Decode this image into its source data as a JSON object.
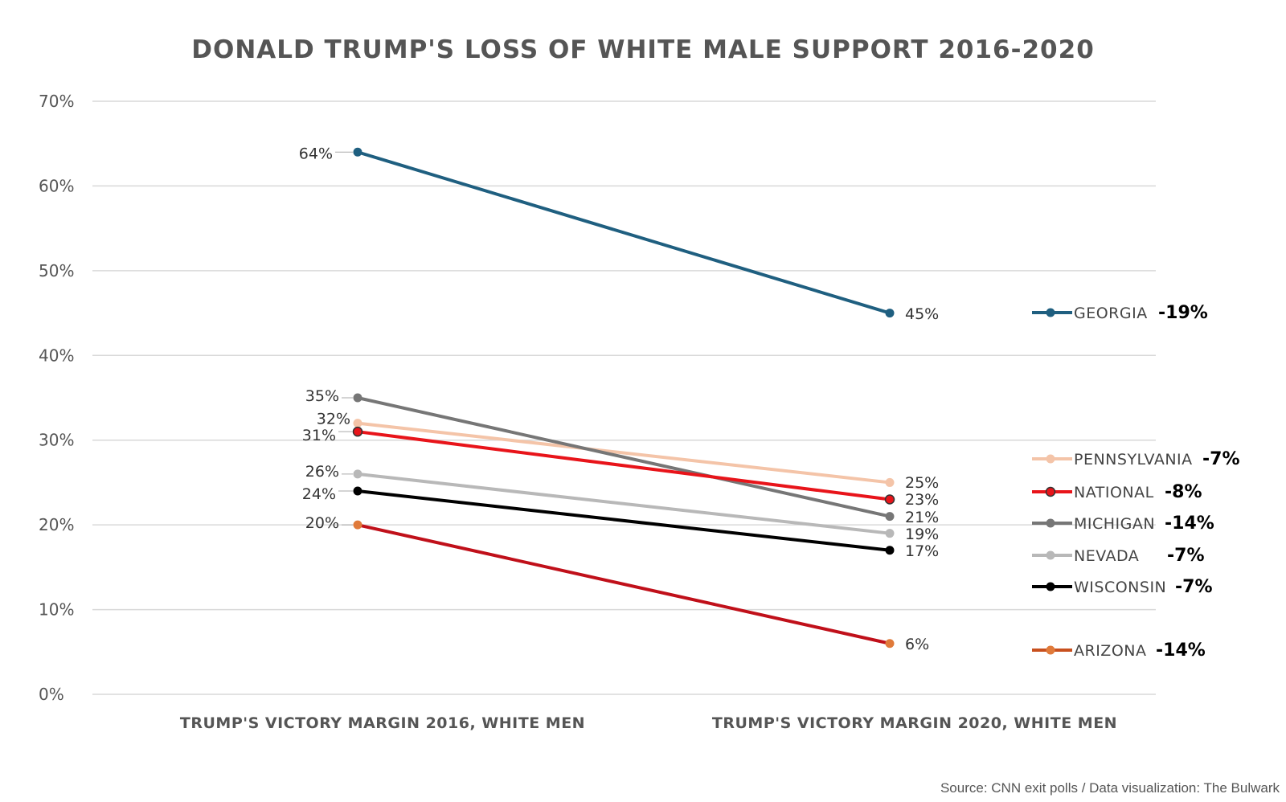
{
  "chart_data": {
    "type": "line",
    "title": "DONALD TRUMP'S LOSS OF WHITE MALE SUPPORT 2016-2020",
    "categories": [
      "TRUMP'S VICTORY MARGIN 2016, WHITE MEN",
      "TRUMP'S VICTORY MARGIN 2020, WHITE MEN"
    ],
    "ylim": [
      0,
      70
    ],
    "yticks": [
      0,
      10,
      20,
      30,
      40,
      50,
      60,
      70
    ],
    "ytick_labels": [
      "0%",
      "10%",
      "20%",
      "30%",
      "40%",
      "50%",
      "60%",
      "70%"
    ],
    "grid": true,
    "legend_position": "right",
    "series": [
      {
        "name": "GEORGIA",
        "values": [
          64,
          45
        ],
        "labels": [
          "64%",
          "45%"
        ],
        "delta": "-19%",
        "color": "#1f5f80"
      },
      {
        "name": "PENNSYLVANIA",
        "values": [
          32,
          25
        ],
        "labels": [
          "32%",
          "25%"
        ],
        "delta": "-7%",
        "color": "#f4c4a8"
      },
      {
        "name": "NATIONAL",
        "values": [
          31,
          23
        ],
        "labels": [
          "31%",
          "23%"
        ],
        "delta": "-8%",
        "color": "#e8141a"
      },
      {
        "name": "MICHIGAN",
        "values": [
          35,
          21
        ],
        "labels": [
          "35%",
          "21%"
        ],
        "delta": "-14%",
        "color": "#767676"
      },
      {
        "name": "NEVADA",
        "values": [
          26,
          19
        ],
        "labels": [
          "26%",
          "19%"
        ],
        "delta": "-7%",
        "color": "#b8b8b8"
      },
      {
        "name": "WISCONSIN",
        "values": [
          24,
          17
        ],
        "labels": [
          "24%",
          "17%"
        ],
        "delta": "-7%",
        "color": "#000000"
      },
      {
        "name": "ARIZONA",
        "values": [
          20,
          6
        ],
        "labels": [
          "20%",
          "6%"
        ],
        "delta": "-14%",
        "color": "#c0101a",
        "marker_color": "#e07a3a",
        "legend_color": "#c8501e"
      }
    ]
  },
  "source": "Source: CNN exit polls / Data visualization: The Bulwark"
}
